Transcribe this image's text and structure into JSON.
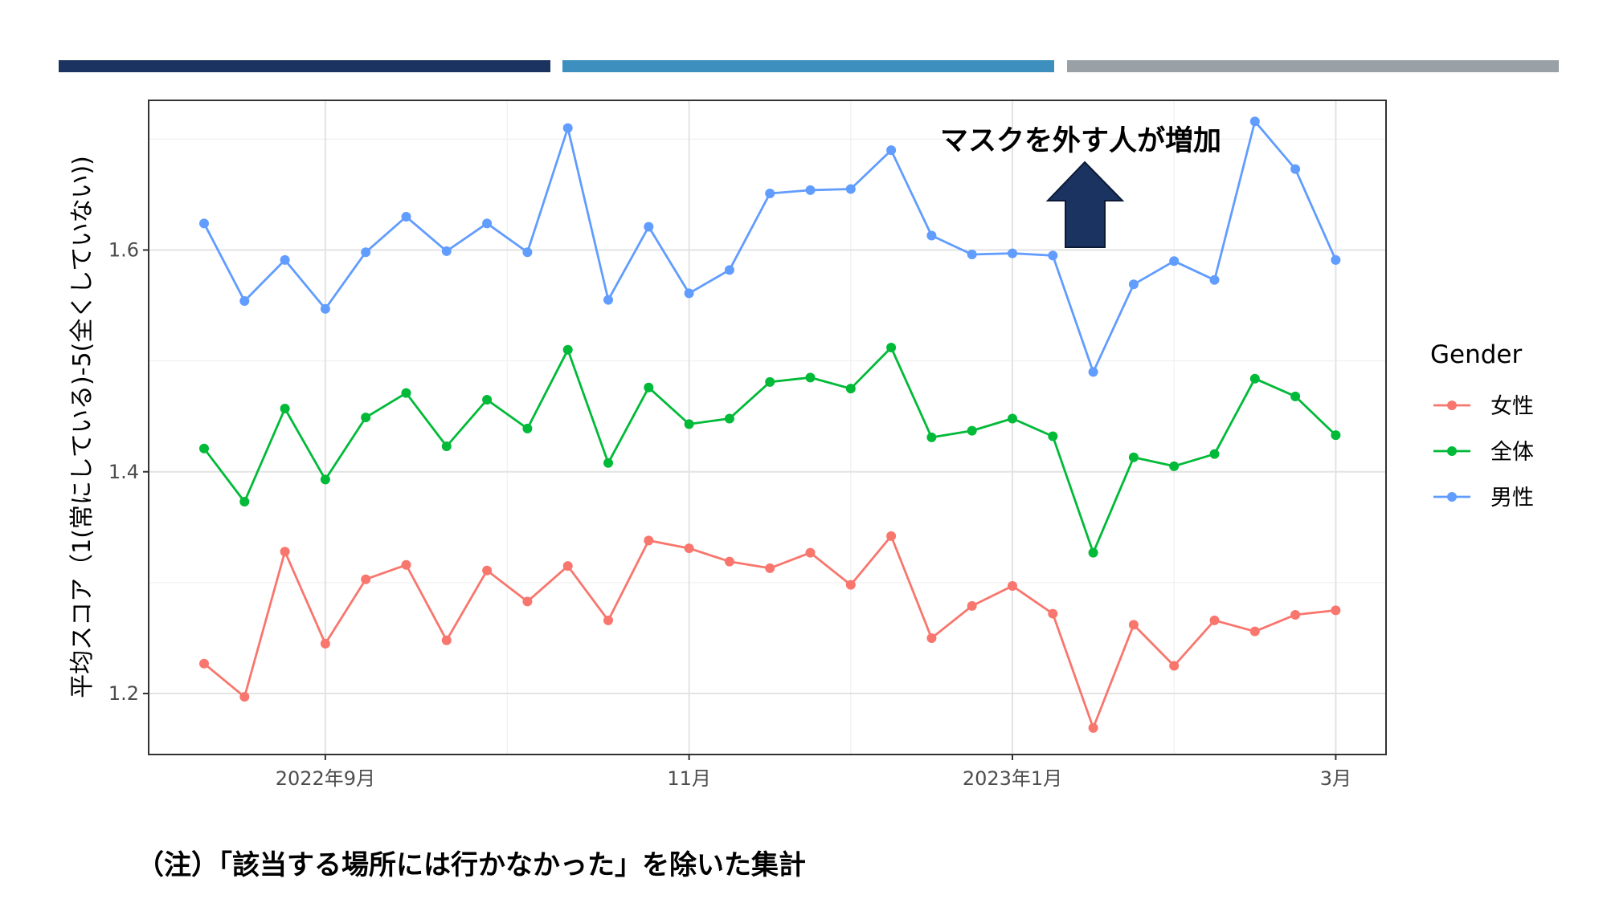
{
  "header_bands": [
    {
      "color": "#1b3360"
    },
    {
      "color": "#3d8fbd"
    },
    {
      "color": "#9aa1a6"
    }
  ],
  "chart_data": {
    "type": "line",
    "title": "",
    "xlabel": "",
    "ylabel": "平均スコア（1(常にしている)-5(全くしていない))",
    "ylim": [
      1.145,
      1.735
    ],
    "y_ticks": [
      1.2,
      1.4,
      1.6
    ],
    "y_tick_labels": [
      "1.2",
      "1.4",
      "1.6"
    ],
    "x_tick_labels": [
      "2022年9月",
      "11月",
      "2023年1月",
      "3月"
    ],
    "x_tick_positions": [
      3,
      12,
      20,
      28
    ],
    "x_minor_positions": [
      7.5,
      16,
      24
    ],
    "grid": true,
    "legend": {
      "title": "Gender",
      "position": "right"
    },
    "series": [
      {
        "name": "女性",
        "color": "#f8766d",
        "values": [
          1.227,
          1.197,
          1.328,
          1.245,
          1.303,
          1.316,
          1.248,
          1.311,
          1.283,
          1.315,
          1.266,
          1.338,
          1.331,
          1.319,
          1.313,
          1.327,
          1.298,
          1.342,
          1.25,
          1.279,
          1.297,
          1.272,
          1.169,
          1.262,
          1.225,
          1.266,
          1.256,
          1.271,
          1.275
        ]
      },
      {
        "name": "全体",
        "color": "#00ba38",
        "values": [
          1.421,
          1.373,
          1.457,
          1.393,
          1.449,
          1.471,
          1.423,
          1.465,
          1.439,
          1.51,
          1.408,
          1.476,
          1.443,
          1.448,
          1.481,
          1.485,
          1.475,
          1.512,
          1.431,
          1.437,
          1.448,
          1.432,
          1.327,
          1.413,
          1.405,
          1.416,
          1.484,
          1.468,
          1.433
        ]
      },
      {
        "name": "男性",
        "color": "#619cff",
        "values": [
          1.624,
          1.554,
          1.591,
          1.547,
          1.598,
          1.63,
          1.599,
          1.624,
          1.598,
          1.71,
          1.555,
          1.621,
          1.561,
          1.582,
          1.651,
          1.654,
          1.655,
          1.69,
          1.613,
          1.596,
          1.597,
          1.595,
          1.49,
          1.569,
          1.59,
          1.573,
          1.716,
          1.673,
          1.591
        ]
      }
    ],
    "annotation": {
      "text": "マスクを外す人が増加",
      "arrow_color": "#1b3360",
      "arrow_x": 22
    }
  },
  "footnote": "（注）「該当する場所には行かなかった」を除いた集計"
}
